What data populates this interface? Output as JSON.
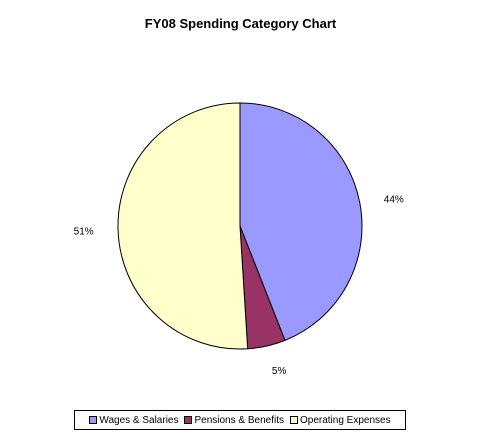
{
  "chart_data": {
    "type": "pie",
    "title": "FY08 Spending Category Chart",
    "categories": [
      "Wages & Salaries",
      "Pensions & Benefits",
      "Operating Expenses"
    ],
    "values": [
      44,
      5,
      51
    ],
    "labels": [
      "44%",
      "5%",
      "51%"
    ],
    "colors": [
      "#9999ff",
      "#993366",
      "#ffffcc"
    ],
    "legend_placement": "bottom"
  }
}
